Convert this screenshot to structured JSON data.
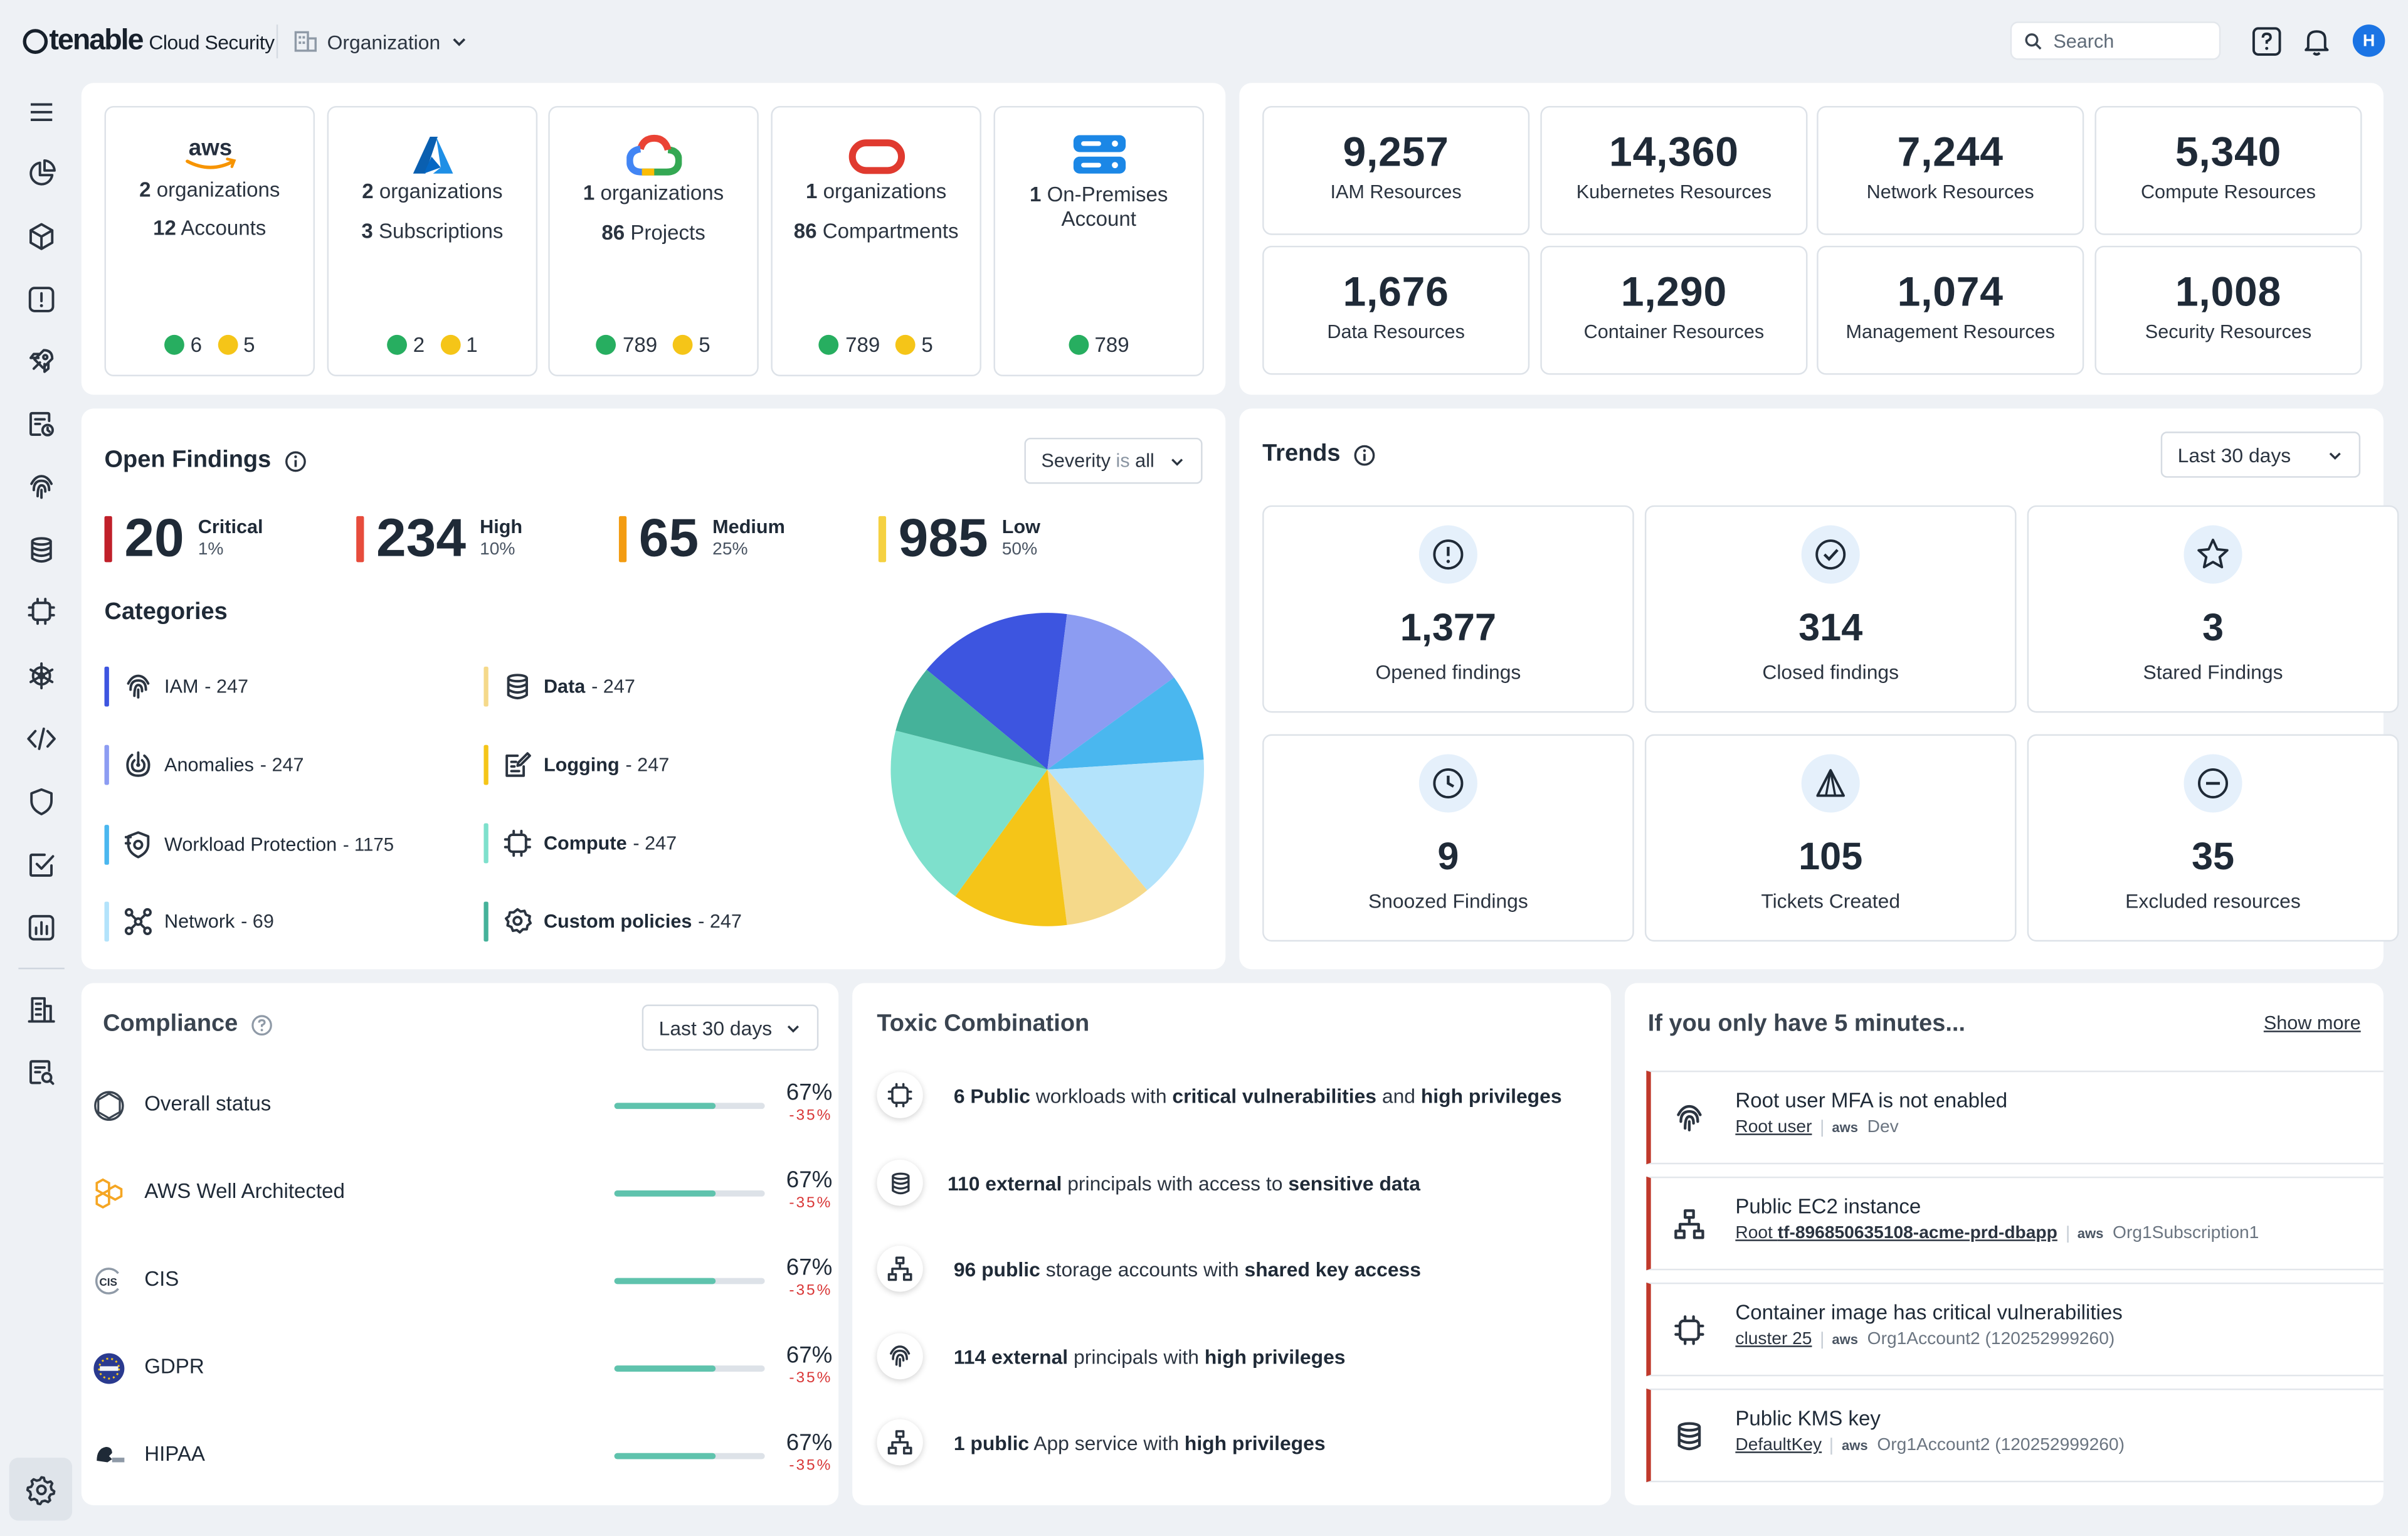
{
  "header": {
    "brand": "tenable",
    "product": "Cloud Security",
    "org_label": "Organization",
    "search_placeholder": "Search",
    "avatar_initial": "H"
  },
  "sidebar": {
    "icons": [
      "menu-icon",
      "pie-chart-icon",
      "cube-icon",
      "alert-icon",
      "rocket-icon",
      "scan-icon",
      "fingerprint-icon",
      "database-icon",
      "chip-icon",
      "helm-icon",
      "code-icon",
      "shield-icon",
      "check-square-icon",
      "bar-chart-icon",
      "building-icon",
      "report-search-icon",
      "gear-icon"
    ]
  },
  "clouds": [
    {
      "provider": "aws",
      "l1_num": "2",
      "l1_txt": " organizations",
      "l2_num": "12",
      "l2_txt": " Accounts",
      "ok": "6",
      "warn": "5"
    },
    {
      "provider": "azure",
      "l1_num": "2",
      "l1_txt": " organizations",
      "l2_num": "3",
      "l2_txt": " Subscriptions",
      "ok": "2",
      "warn": "1"
    },
    {
      "provider": "gcp",
      "l1_num": "1",
      "l1_txt": " organizations",
      "l2_num": "86",
      "l2_txt": " Projects",
      "ok": "789",
      "warn": "5"
    },
    {
      "provider": "oracle",
      "l1_num": "1",
      "l1_txt": " organizations",
      "l2_num": "86",
      "l2_txt": " Compartments",
      "ok": "789",
      "warn": "5"
    },
    {
      "provider": "onprem",
      "l1_num": "1",
      "l1_txt": " On-Premises",
      "l2_num": "",
      "l2_txt": "Account",
      "ok": "789",
      "warn": ""
    }
  ],
  "resources": [
    {
      "num": "9,257",
      "label": "IAM Resources"
    },
    {
      "num": "14,360",
      "label": "Kubernetes Resources"
    },
    {
      "num": "7,244",
      "label": "Network Resources"
    },
    {
      "num": "5,340",
      "label": "Compute Resources"
    },
    {
      "num": "1,676",
      "label": "Data Resources"
    },
    {
      "num": "1,290",
      "label": "Container Resources"
    },
    {
      "num": "1,074",
      "label": "Management Resources"
    },
    {
      "num": "1,008",
      "label": "Security Resources"
    }
  ],
  "findings": {
    "title": "Open Findings",
    "filter_prefix": "Severity ",
    "filter_is": "is",
    "filter_value": " all",
    "severities": [
      {
        "num": "20",
        "name": "Critical",
        "pct": "1%",
        "color": "#c0202a"
      },
      {
        "num": "234",
        "name": "High",
        "pct": "10%",
        "color": "#e74c3c"
      },
      {
        "num": "65",
        "name": "Medium",
        "pct": "25%",
        "color": "#f39c12"
      },
      {
        "num": "985",
        "name": "Low",
        "pct": "50%",
        "color": "#f5d142"
      }
    ],
    "categories_title": "Categories",
    "categories": [
      {
        "name": "IAM",
        "count": "- 247",
        "bold": false,
        "color": "#3d55e0",
        "icon": "fingerprint-icon"
      },
      {
        "name": "Data",
        "count": "- 247",
        "bold": true,
        "color": "#f5d98a",
        "icon": "database-icon"
      },
      {
        "name": "Anomalies",
        "count": "- 247",
        "bold": false,
        "color": "#8c9cf2",
        "icon": "radar-icon"
      },
      {
        "name": "Logging",
        "count": "- 247",
        "bold": true,
        "color": "#f5c518",
        "icon": "logging-icon"
      },
      {
        "name": "Workload Protection",
        "count": "- 1175",
        "bold": false,
        "color": "#4ab7ef",
        "icon": "shield-gear-icon"
      },
      {
        "name": "Compute",
        "count": "- 247",
        "bold": true,
        "color": "#7ee0cc",
        "icon": "chip-icon"
      },
      {
        "name": "Network",
        "count": "- 69",
        "bold": false,
        "color": "#b3e3fb",
        "icon": "network-icon"
      },
      {
        "name": "Custom policies",
        "count": "- 247",
        "bold": true,
        "color": "#45b29a",
        "icon": "custom-policy-icon"
      }
    ]
  },
  "chart_data": {
    "type": "pie",
    "slices": [
      {
        "value": 16,
        "color": "#3d55e0"
      },
      {
        "value": 13,
        "color": "#8c9cf2"
      },
      {
        "value": 9,
        "color": "#4ab7ef"
      },
      {
        "value": 15,
        "color": "#b3e3fb"
      },
      {
        "value": 9,
        "color": "#f5d98a"
      },
      {
        "value": 12,
        "color": "#f5c518"
      },
      {
        "value": 19,
        "color": "#7ee0cc"
      },
      {
        "value": 7,
        "color": "#45b29a"
      }
    ]
  },
  "trends": {
    "title": "Trends",
    "range": "Last 30 days",
    "tiles": [
      {
        "num": "1,377",
        "label": "Opened findings",
        "icon": "alert-circle-icon"
      },
      {
        "num": "314",
        "label": "Closed findings",
        "icon": "check-circle-icon"
      },
      {
        "num": "3",
        "label": "Stared Findings",
        "icon": "star-icon"
      },
      {
        "num": "9",
        "label": "Snoozed Findings",
        "icon": "clock-icon"
      },
      {
        "num": "105",
        "label": "Tickets Created",
        "icon": "ticket-icon"
      },
      {
        "num": "35",
        "label": "Excluded resources",
        "icon": "minus-circle-icon"
      }
    ]
  },
  "compliance": {
    "title": "Compliance",
    "range": "Last 30 days",
    "items": [
      {
        "name": "Overall status",
        "pct": "67%",
        "delta": "-35%",
        "level": 0.67,
        "icon": "overall-status-icon"
      },
      {
        "name": "AWS Well Architected",
        "pct": "67%",
        "delta": "-35%",
        "level": 0.67,
        "icon": "aws-wa-icon"
      },
      {
        "name": "CIS",
        "pct": "67%",
        "delta": "-35%",
        "level": 0.67,
        "icon": "cis-icon"
      },
      {
        "name": "GDPR",
        "pct": "67%",
        "delta": "-35%",
        "level": 0.67,
        "icon": "gdpr-icon"
      },
      {
        "name": "HIPAA",
        "pct": "67%",
        "delta": "-35%",
        "level": 0.67,
        "icon": "hipaa-icon"
      }
    ]
  },
  "toxic": {
    "title": "Toxic Combination",
    "items": [
      {
        "icon": "chip-icon",
        "parts": [
          [
            "6 Public",
            true
          ],
          [
            " workloads with ",
            false
          ],
          [
            "critical vulnerabilities",
            true
          ],
          [
            " and ",
            false
          ],
          [
            "high privileges",
            true
          ]
        ]
      },
      {
        "icon": "database-icon",
        "parts": [
          [
            "110 external",
            true
          ],
          [
            " principals with access to ",
            false
          ],
          [
            "sensitive data",
            true
          ]
        ]
      },
      {
        "icon": "storage-icon",
        "parts": [
          [
            "96 public",
            true
          ],
          [
            " storage accounts with ",
            false
          ],
          [
            "shared key access",
            true
          ]
        ]
      },
      {
        "icon": "fingerprint-icon",
        "parts": [
          [
            "114 external",
            true
          ],
          [
            " principals with ",
            false
          ],
          [
            "high privileges",
            true
          ]
        ]
      },
      {
        "icon": "storage-icon",
        "parts": [
          [
            "1 public",
            true
          ],
          [
            " App service with ",
            false
          ],
          [
            "high privileges",
            true
          ]
        ]
      }
    ]
  },
  "five": {
    "title": "If you only have 5 minutes...",
    "show_more": "Show more",
    "items": [
      {
        "title": "Root user MFA is not enabled",
        "link": "Root user",
        "link_bold": "",
        "aws": "aws",
        "account": "Dev",
        "icon": "fingerprint-icon"
      },
      {
        "title": "Public EC2 instance",
        "link": "Root ",
        "link_bold": "tf-896850635108-acme-prd-dbapp",
        "aws": "aws",
        "account": "Org1Subscription1",
        "icon": "storage-icon"
      },
      {
        "title": "Container image has critical vulnerabilities",
        "link": "cluster 25",
        "link_bold": "",
        "aws": "aws",
        "account": "Org1Account2 (120252999260)",
        "icon": "chip-icon"
      },
      {
        "title": "Public KMS key",
        "link": "DefaultKey",
        "link_bold": "",
        "aws": "aws",
        "account": "Org1Account2 (120252999260)",
        "icon": "database-icon"
      }
    ]
  }
}
